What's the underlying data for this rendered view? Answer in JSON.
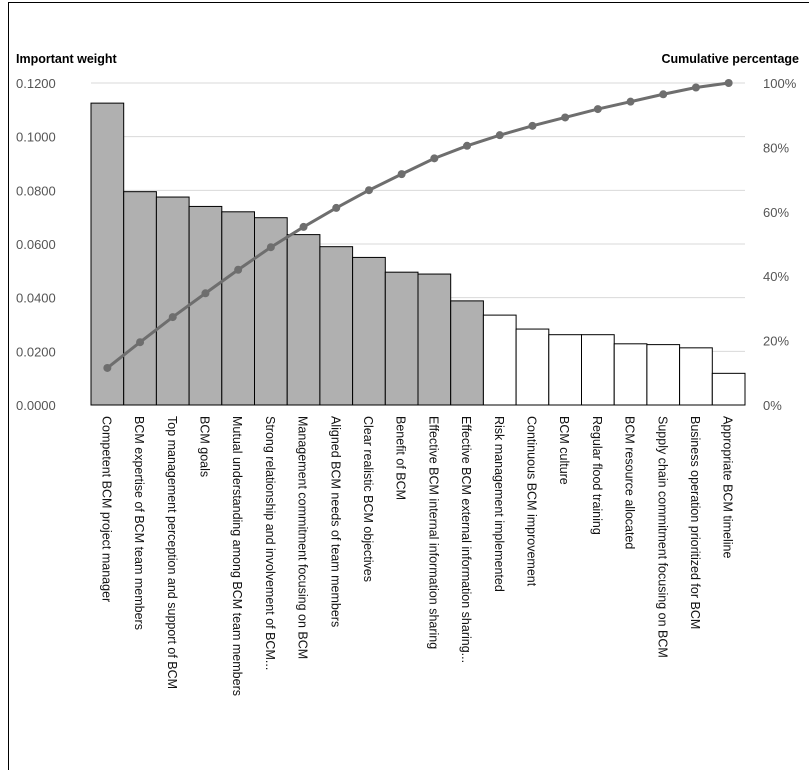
{
  "chart_data": {
    "type": "bar",
    "left_axis_title": "Important weight",
    "right_axis_title": "Cumulative percentage",
    "y_left": {
      "ticks": [
        "0.0000",
        "0.0200",
        "0.0400",
        "0.0600",
        "0.0800",
        "0.1000",
        "0.1200"
      ],
      "ylim": [
        0,
        0.12
      ]
    },
    "y_right": {
      "ticks": [
        "0%",
        "20%",
        "40%",
        "60%",
        "80%",
        "100%"
      ],
      "ylim": [
        0,
        100
      ]
    },
    "grid": true,
    "categories": [
      "Competent BCM project manager",
      "BCM expertise of BCM team members",
      "Top management perception and support of BCM",
      "BCM goals",
      "Mutual understanding among BCM team members",
      "Strong relationship and involvement of BCM...",
      "Management commitment focusing on BCM",
      "Aligned BCM needs of team members",
      "Clear realistic BCM objectives",
      "Benefit of BCM",
      "Effective BCM internal information sharing",
      "Effective BCM external information sharing...",
      "Risk management implemented",
      "Continuous BCM improvement",
      "BCM culture",
      "Regular flood training",
      "BCM resource allocated",
      "Supply chain commitment focusing on BCM",
      "Business operation prioritized for BCM",
      "Appropriate BCM timeline"
    ],
    "series": [
      {
        "type": "bar",
        "values": [
          0.1125,
          0.0795,
          0.0775,
          0.074,
          0.072,
          0.0698,
          0.0635,
          0.059,
          0.055,
          0.0495,
          0.0488,
          0.0388,
          0.0335,
          0.0283,
          0.0262,
          0.0262,
          0.0228,
          0.0225,
          0.0213,
          0.0118
        ],
        "colors": [
          "#b0b0b0",
          "#b0b0b0",
          "#b0b0b0",
          "#b0b0b0",
          "#b0b0b0",
          "#b0b0b0",
          "#b0b0b0",
          "#b0b0b0",
          "#b0b0b0",
          "#b0b0b0",
          "#b0b0b0",
          "#b0b0b0",
          "#ffffff",
          "#ffffff",
          "#ffffff",
          "#ffffff",
          "#ffffff",
          "#ffffff",
          "#ffffff",
          "#ffffff"
        ]
      },
      {
        "type": "line",
        "axis": "right",
        "color": "#6e6e6e",
        "values": [
          11.5,
          19.5,
          27.3,
          34.7,
          42.0,
          49.0,
          55.3,
          61.2,
          66.7,
          71.7,
          76.6,
          80.5,
          83.8,
          86.7,
          89.3,
          91.9,
          94.2,
          96.5,
          98.6,
          100.0
        ]
      }
    ]
  }
}
